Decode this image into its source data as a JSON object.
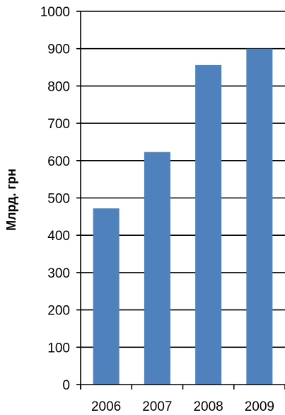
{
  "chart_data": {
    "type": "bar",
    "categories": [
      "2006",
      "2007",
      "2008",
      "2009"
    ],
    "values": [
      472,
      623,
      856,
      900
    ],
    "title": "",
    "xlabel": "",
    "ylabel": "Млрд. грн",
    "ylim": [
      0,
      1000
    ],
    "yticks": [
      "0",
      "100",
      "200",
      "300",
      "400",
      "500",
      "600",
      "700",
      "800",
      "900",
      "1000"
    ],
    "grid": true,
    "bar_color": "#4f81bd"
  }
}
